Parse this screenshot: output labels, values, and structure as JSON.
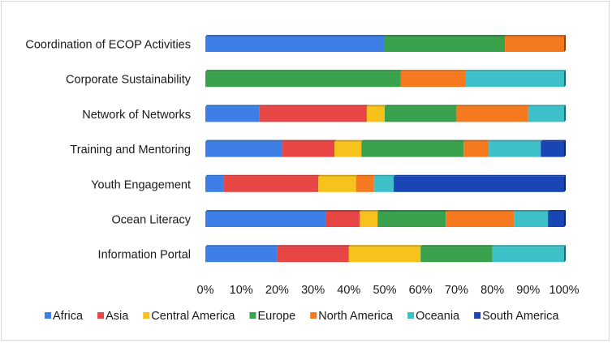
{
  "chart_data": {
    "type": "bar",
    "orientation": "horizontal",
    "stacked": "percent",
    "categories": [
      "Coordination of ECOP Activities",
      "Corporate Sustainability",
      "Network of Networks",
      "Training and Mentoring",
      "Youth Engagement",
      "Ocean Literacy",
      "Information Portal"
    ],
    "series": [
      {
        "name": "Africa",
        "color": "#3d7fe6",
        "values": [
          50,
          0,
          15,
          21.5,
          5,
          33.5,
          20
        ]
      },
      {
        "name": "Asia",
        "color": "#e84545",
        "values": [
          0,
          0,
          30,
          14.5,
          26.5,
          9.5,
          20
        ]
      },
      {
        "name": "Central America",
        "color": "#f6c21b",
        "values": [
          0,
          0,
          5,
          7.5,
          10.5,
          5,
          20
        ]
      },
      {
        "name": "Europe",
        "color": "#3aa14d",
        "values": [
          33.5,
          54.5,
          20,
          28.5,
          0,
          19,
          20
        ]
      },
      {
        "name": "North America",
        "color": "#f57a1f",
        "values": [
          16.5,
          18,
          20,
          7,
          5,
          19,
          0
        ]
      },
      {
        "name": "Oceania",
        "color": "#3ec0c8",
        "values": [
          0,
          27.5,
          10,
          14.5,
          5.5,
          9.5,
          20
        ]
      },
      {
        "name": "South America",
        "color": "#1a46b5",
        "values": [
          0,
          0,
          0,
          6.5,
          47.5,
          4.5,
          0
        ]
      }
    ],
    "xlim": [
      0,
      100
    ],
    "xticks": [
      "0%",
      "10%",
      "20%",
      "30%",
      "40%",
      "50%",
      "60%",
      "70%",
      "80%",
      "90%",
      "100%"
    ],
    "grid": false,
    "legend_position": "bottom"
  }
}
